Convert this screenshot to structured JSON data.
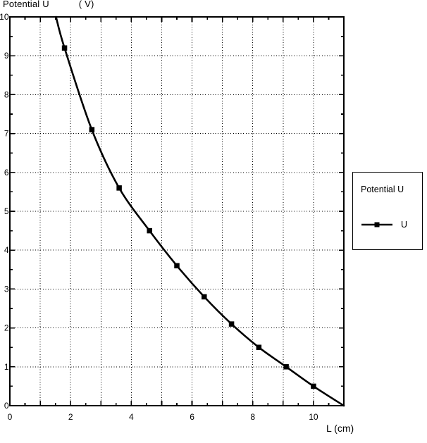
{
  "chart_data": {
    "type": "line",
    "ylabel_text": "Potential U",
    "ylabel_unit": "( V)",
    "xlabel": "L (cm)",
    "xlim": [
      0,
      11
    ],
    "ylim": [
      0,
      10
    ],
    "x_tick_step_major": 1,
    "x_tick_step_minor": 0.5,
    "y_tick_step_major": 1,
    "y_tick_step_minor": 0.5,
    "x_tick_labels": [
      0,
      2,
      4,
      6,
      8,
      10
    ],
    "y_tick_labels": [
      0,
      1,
      2,
      3,
      4,
      5,
      6,
      7,
      8,
      9,
      10
    ],
    "grid": "dotted at every integer, box on, minor ticks on all four sides",
    "series": [
      {
        "name": "U",
        "marker": "filled-square",
        "color": "#000000",
        "x": [
          1.8,
          2.7,
          3.6,
          4.6,
          5.5,
          6.4,
          7.3,
          8.2,
          9.1,
          10.0
        ],
        "y": [
          9.2,
          7.1,
          5.6,
          4.5,
          3.6,
          2.8,
          2.1,
          1.5,
          1.0,
          0.5
        ],
        "curve_extends_to": [
          [
            1.52,
            10
          ],
          [
            11,
            0
          ]
        ]
      }
    ],
    "legend": {
      "title": "Potential U",
      "entries": [
        {
          "label": "U",
          "marker": "filled-square"
        }
      ],
      "position": "outside-right"
    },
    "colors": {
      "foreground": "#000000",
      "background": "#ffffff"
    }
  }
}
